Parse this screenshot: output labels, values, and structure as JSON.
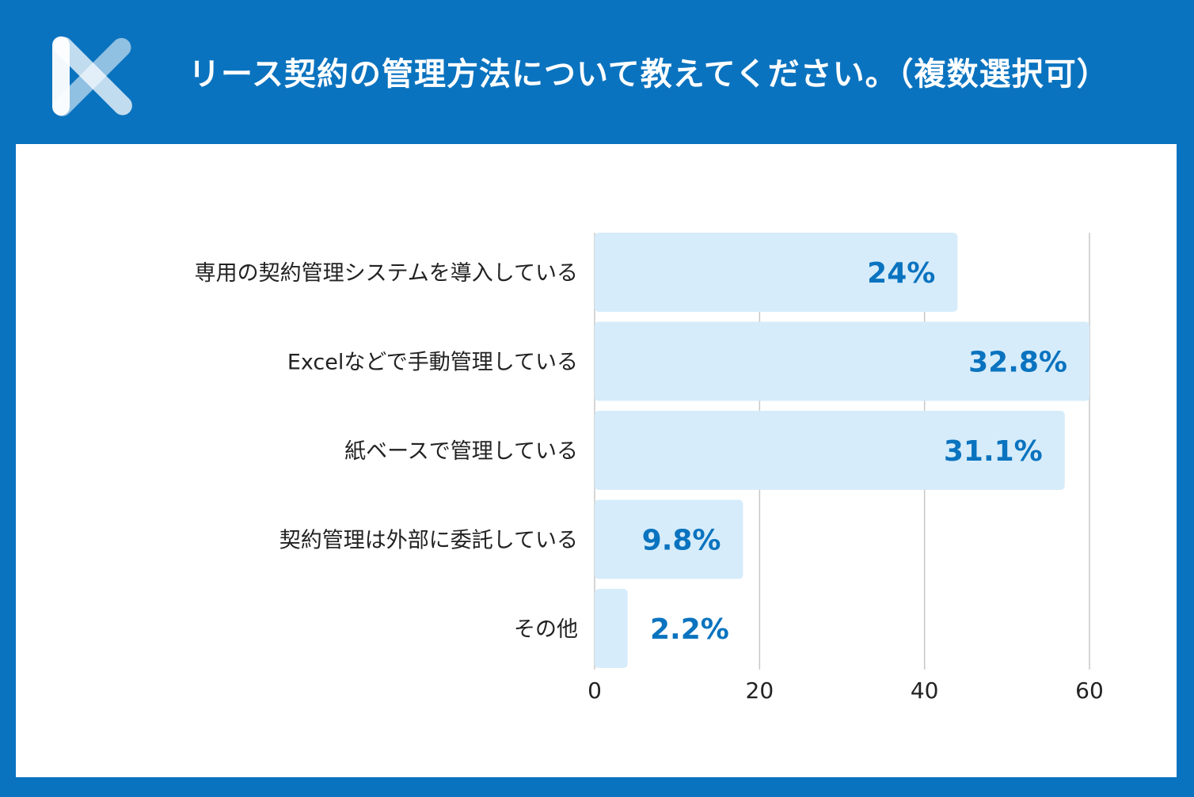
{
  "header": {
    "title": "リース契約の管理方法について教えてください。（複数選択可）"
  },
  "colors": {
    "frame": "#0a73bf",
    "bar": "#d6ecfa",
    "value_label": "#0a73bf",
    "grid": "#c8c8c8"
  },
  "chart_data": {
    "type": "bar",
    "orientation": "horizontal",
    "title": "リース契約の管理方法について教えてください。（複数選択可）",
    "categories": [
      "専用の契約管理システムを導入している",
      "Excelなどで手動管理している",
      "紙ベースで管理している",
      "契約管理は外部に委託している",
      "その他"
    ],
    "values": [
      44,
      60,
      57,
      18,
      4
    ],
    "value_labels": [
      "24%",
      "32.8%",
      "31.1%",
      "9.8%",
      "2.2%"
    ],
    "xlim": [
      0,
      60
    ],
    "xticks": [
      "0",
      "20",
      "40",
      "60"
    ],
    "grid": true,
    "xlabel": "",
    "ylabel": ""
  }
}
